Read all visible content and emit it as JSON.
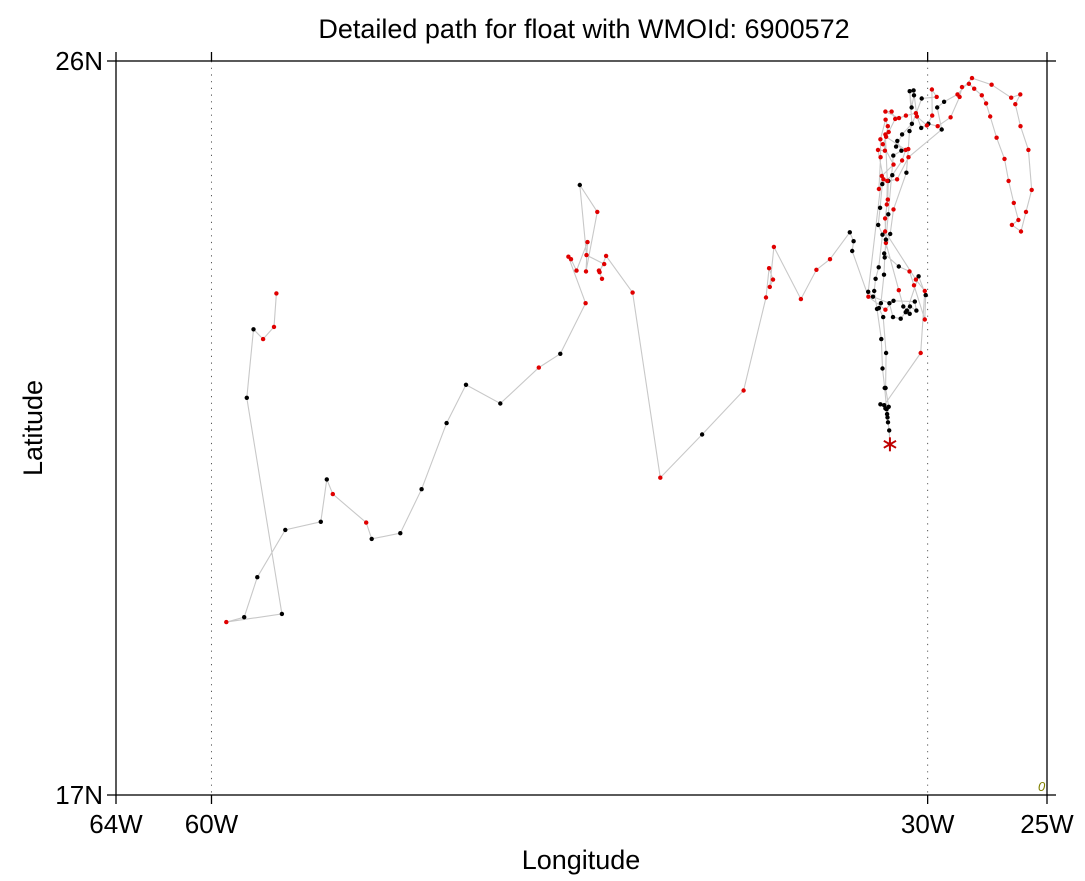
{
  "chart_data": {
    "type": "scatter",
    "title": "Detailed path for float with WMOId: 6900572",
    "xlabel": "Longitude",
    "ylabel": "Latitude",
    "xlim": [
      -64,
      -25
    ],
    "ylim": [
      17,
      26
    ],
    "x_ticks": [
      {
        "value": -64,
        "label": "64W"
      },
      {
        "value": -60,
        "label": "60W"
      },
      {
        "value": -30,
        "label": "30W"
      },
      {
        "value": -25,
        "label": "25W"
      }
    ],
    "y_ticks": [
      {
        "value": 17,
        "label": "17N"
      },
      {
        "value": 26,
        "label": "26N"
      }
    ],
    "grid_x": [
      -60,
      -30
    ],
    "corner_label": "0",
    "colors": {
      "path": "#c8c8c8",
      "point_black": "#000000",
      "point_red": "#e00000",
      "marker_end": "#c00000",
      "grid": "#555555",
      "axis": "#000000",
      "corner": "#808000"
    },
    "series": [
      {
        "points": [
          [
            -57.28,
            23.15,
            "r"
          ],
          [
            -57.38,
            22.74,
            "r"
          ],
          [
            -57.84,
            22.59,
            "r"
          ],
          [
            -58.24,
            22.71,
            "k"
          ],
          [
            -58.52,
            21.87,
            "k"
          ],
          [
            -57.05,
            19.22,
            "k"
          ],
          [
            -59.38,
            19.12,
            "r"
          ],
          [
            -58.63,
            19.18,
            "k"
          ],
          [
            -58.08,
            19.67,
            "k"
          ],
          [
            -56.91,
            20.25,
            "k"
          ],
          [
            -55.42,
            20.35,
            "k"
          ],
          [
            -55.17,
            20.87,
            "k"
          ],
          [
            -54.92,
            20.69,
            "r"
          ],
          [
            -53.52,
            20.34,
            "r"
          ],
          [
            -53.29,
            20.14,
            "k"
          ],
          [
            -52.09,
            20.21,
            "k"
          ],
          [
            -51.2,
            20.75,
            "k"
          ],
          [
            -50.15,
            21.56,
            "k"
          ],
          [
            -49.34,
            22.03,
            "k"
          ],
          [
            -47.9,
            21.8,
            "k"
          ],
          [
            -46.29,
            22.24,
            "r"
          ],
          [
            -45.39,
            22.41,
            "k"
          ],
          [
            -44.33,
            23.03,
            "r"
          ],
          [
            -45.05,
            23.6,
            "r"
          ],
          [
            -44.94,
            23.57,
            "r"
          ],
          [
            -44.71,
            23.43,
            "r"
          ],
          [
            -44.25,
            23.78,
            "r"
          ],
          [
            -44.31,
            23.42,
            "r"
          ],
          [
            -43.84,
            24.15,
            "r"
          ],
          [
            -44.57,
            24.48,
            "k"
          ],
          [
            -44.29,
            23.62,
            "r"
          ],
          [
            -43.55,
            23.51,
            "r"
          ],
          [
            -43.77,
            23.43,
            "r"
          ],
          [
            -43.64,
            23.33,
            "r"
          ],
          [
            -43.74,
            23.41,
            "r"
          ],
          [
            -43.47,
            23.61,
            "r"
          ],
          [
            -42.36,
            23.16,
            "r"
          ],
          [
            -41.2,
            20.89,
            "r"
          ],
          [
            -39.45,
            21.42,
            "k"
          ],
          [
            -37.71,
            21.96,
            "r"
          ],
          [
            -36.77,
            23.1,
            "r"
          ],
          [
            -36.64,
            23.46,
            "r"
          ],
          [
            -36.48,
            23.32,
            "r"
          ],
          [
            -36.61,
            23.23,
            "r"
          ],
          [
            -36.44,
            23.72,
            "r"
          ],
          [
            -35.31,
            23.08,
            "r"
          ],
          [
            -34.66,
            23.44,
            "r"
          ],
          [
            -34.09,
            23.57,
            "r"
          ],
          [
            -33.26,
            23.9,
            "k"
          ],
          [
            -33.1,
            23.79,
            "k"
          ],
          [
            -33.16,
            23.67,
            "k"
          ],
          [
            -32.48,
            23.11,
            "r"
          ],
          [
            -31.77,
            22.95,
            "r"
          ],
          [
            -31.43,
            23.06,
            "k"
          ],
          [
            -30.54,
            23.05,
            "k"
          ],
          [
            -30.47,
            22.94,
            "k"
          ],
          [
            -30.74,
            22.99,
            "k"
          ],
          [
            -30.75,
            22.9,
            "k"
          ],
          [
            -30.92,
            22.92,
            "k"
          ],
          [
            -31.13,
            22.84,
            "k"
          ],
          [
            -31.45,
            22.86,
            "k"
          ],
          [
            -31.6,
            23.03,
            "k"
          ],
          [
            -32.29,
            23.11,
            "k"
          ],
          [
            -32.49,
            23.17,
            "k"
          ],
          [
            -31.92,
            24.59,
            "r"
          ],
          [
            -31.43,
            24.73,
            "r"
          ],
          [
            -31.88,
            24.98,
            "r"
          ],
          [
            -31.63,
            25.13,
            "r"
          ],
          [
            -31.36,
            25.29,
            "r"
          ],
          [
            -31.51,
            25.38,
            "r"
          ],
          [
            -31.77,
            25.38,
            "r"
          ],
          [
            -31.2,
            25.3,
            "r"
          ],
          [
            -30.91,
            25.33,
            "r"
          ],
          [
            -30.49,
            25.36,
            "r"
          ],
          [
            -30.27,
            25.18,
            "k"
          ],
          [
            -29.97,
            25.23,
            "k"
          ],
          [
            -29.58,
            25.2,
            "r"
          ],
          [
            -29.04,
            25.31,
            "r"
          ],
          [
            -28.66,
            25.56,
            "r"
          ],
          [
            -28.56,
            25.68,
            "r"
          ],
          [
            -28.27,
            25.72,
            "r"
          ],
          [
            -28.05,
            25.66,
            "r"
          ],
          [
            -27.73,
            25.58,
            "r"
          ],
          [
            -27.55,
            25.48,
            "r"
          ],
          [
            -27.38,
            25.32,
            "r"
          ],
          [
            -27.11,
            25.06,
            "r"
          ],
          [
            -26.78,
            24.8,
            "r"
          ],
          [
            -26.61,
            24.53,
            "r"
          ],
          [
            -26.39,
            24.26,
            "r"
          ],
          [
            -26.2,
            24.05,
            "r"
          ],
          [
            -26.47,
            23.99,
            "r"
          ],
          [
            -26.09,
            23.91,
            "r"
          ],
          [
            -25.88,
            24.15,
            "r"
          ],
          [
            -25.64,
            24.42,
            "r"
          ],
          [
            -25.78,
            24.91,
            "r"
          ],
          [
            -26.11,
            25.2,
            "r"
          ],
          [
            -26.33,
            25.47,
            "r"
          ],
          [
            -26.12,
            25.59,
            "r"
          ],
          [
            -26.5,
            25.55,
            "r"
          ],
          [
            -27.32,
            25.71,
            "r"
          ],
          [
            -28.14,
            25.79,
            "r"
          ],
          [
            -28.75,
            25.59,
            "r"
          ],
          [
            -29.31,
            25.5,
            "k"
          ],
          [
            -29.6,
            25.43,
            "k"
          ],
          [
            -29.41,
            25.16,
            "k"
          ],
          [
            -30.8,
            24.82,
            "r"
          ],
          [
            -31.28,
            24.55,
            "r"
          ],
          [
            -31.65,
            24.53,
            "k"
          ],
          [
            -31.67,
            24.3,
            "r"
          ],
          [
            -31.78,
            24.07,
            "r"
          ],
          [
            -31.75,
            23.77,
            "r"
          ],
          [
            -31.21,
            23.19,
            "r"
          ],
          [
            -31.02,
            22.99,
            "k"
          ],
          [
            -30.87,
            22.94,
            "k"
          ],
          [
            -30.38,
            23.36,
            "k"
          ],
          [
            -30.08,
            23.13,
            "k"
          ],
          [
            -30.12,
            22.83,
            "r"
          ],
          [
            -30.57,
            23.25,
            "r"
          ],
          [
            -30.76,
            23.42,
            "r"
          ],
          [
            -31.21,
            23.48,
            "k"
          ],
          [
            -31.82,
            23.64,
            "k"
          ],
          [
            -31.57,
            23.88,
            "k"
          ],
          [
            -31.43,
            24.18,
            "r"
          ],
          [
            -30.89,
            24.63,
            "k"
          ],
          [
            -30.81,
            24.92,
            "r"
          ],
          [
            -30.76,
            25.14,
            "k"
          ],
          [
            -30.25,
            25.54,
            "k"
          ],
          [
            -29.62,
            25.56,
            "r"
          ],
          [
            -29.82,
            25.65,
            "r"
          ],
          [
            -29.81,
            25.33,
            "r"
          ],
          [
            -30.03,
            25.21,
            "r"
          ],
          [
            -30.45,
            25.32,
            "r"
          ],
          [
            -30.59,
            25.64,
            "k"
          ],
          [
            -30.57,
            25.58,
            "k"
          ],
          [
            -30.67,
            25.43,
            "k"
          ],
          [
            -30.75,
            25.63,
            "k"
          ],
          [
            -30.66,
            25.23,
            "k"
          ],
          [
            -31.07,
            25.1,
            "k"
          ],
          [
            -31.32,
            24.95,
            "k"
          ],
          [
            -31.27,
            25.02,
            "k"
          ],
          [
            -31.1,
            24.9,
            "k"
          ],
          [
            -31.44,
            24.84,
            "k"
          ],
          [
            -31.65,
            24.12,
            "k"
          ],
          [
            -31.75,
            23.81,
            "k"
          ],
          [
            -31.8,
            23.59,
            "k"
          ],
          [
            -31.83,
            23.38,
            "k"
          ],
          [
            -31.96,
            23.03,
            "k"
          ],
          [
            -32.04,
            22.97,
            "k"
          ],
          [
            -31.86,
            22.86,
            "k"
          ],
          [
            -31.74,
            22.42,
            "k"
          ],
          [
            -31.76,
            21.99,
            "k"
          ],
          [
            -31.63,
            21.76,
            "k"
          ],
          [
            -31.7,
            21.67,
            "k"
          ],
          [
            -31.77,
            21.74,
            "k"
          ],
          [
            -31.98,
            21.79,
            "k"
          ],
          [
            -31.82,
            21.78,
            "k"
          ],
          [
            -30.29,
            22.42,
            "r"
          ],
          [
            -30.12,
            23.18,
            "r"
          ],
          [
            -30.49,
            23.32,
            "r"
          ],
          [
            -31.78,
            23.91,
            "r"
          ],
          [
            -31.71,
            24.24,
            "r"
          ],
          [
            -31.69,
            24.53,
            "r"
          ],
          [
            -31.77,
            25.1,
            "r"
          ],
          [
            -31.79,
            24.9,
            "r"
          ],
          [
            -32.08,
            24.91,
            "r"
          ],
          [
            -31.85,
            24.55,
            "r"
          ],
          [
            -32.04,
            24.43,
            "r"
          ],
          [
            -31.97,
            24.82,
            "r"
          ],
          [
            -31.98,
            25.04,
            "r"
          ],
          [
            -31.76,
            25.28,
            "r"
          ],
          [
            -31.67,
            25.2,
            "r"
          ],
          [
            -31.74,
            25.07,
            "r"
          ],
          [
            -30.92,
            24.91,
            "r"
          ],
          [
            -31.07,
            24.78,
            "r"
          ],
          [
            -31.48,
            24.6,
            "k"
          ],
          [
            -31.9,
            24.49,
            "k"
          ],
          [
            -31.99,
            24.2,
            "k"
          ],
          [
            -32.07,
            23.99,
            "k"
          ],
          [
            -31.89,
            23.87,
            "k"
          ],
          [
            -32.05,
            23.47,
            "k"
          ],
          [
            -32.18,
            23.33,
            "k"
          ],
          [
            -32.24,
            23.18,
            "k"
          ],
          [
            -32.12,
            22.96,
            "k"
          ],
          [
            -31.94,
            22.59,
            "k"
          ],
          [
            -31.89,
            22.23,
            "k"
          ],
          [
            -31.8,
            21.99,
            "k"
          ],
          [
            -31.72,
            21.73,
            "k"
          ],
          [
            -31.68,
            21.63,
            "k"
          ],
          [
            -31.66,
            21.57,
            "k"
          ],
          [
            -31.61,
            21.47,
            "k"
          ],
          [
            -31.58,
            21.3,
            "k"
          ]
        ]
      }
    ]
  }
}
